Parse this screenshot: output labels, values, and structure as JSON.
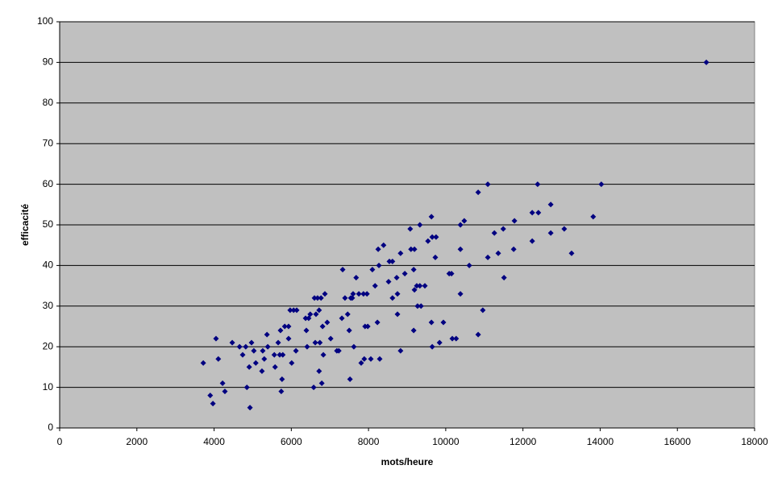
{
  "chart_data": {
    "type": "scatter",
    "x_label": "mots/heure",
    "y_label": "efficacité",
    "xlim": [
      0,
      18000
    ],
    "xticks": [
      0,
      2000,
      4000,
      6000,
      8000,
      10000,
      12000,
      14000,
      16000,
      18000
    ],
    "ylim": [
      0,
      100
    ],
    "yticks": [
      0,
      10,
      20,
      30,
      40,
      50,
      60,
      70,
      80,
      90,
      100
    ],
    "grid": true,
    "background": "#c0c0c0",
    "color": "#000080",
    "x": [
      3720,
      3900,
      3970,
      4050,
      4110,
      4220,
      4280,
      4470,
      4660,
      4740,
      4820,
      4850,
      4910,
      4930,
      4970,
      5030,
      5080,
      5240,
      5260,
      5300,
      5370,
      5390,
      5560,
      5580,
      5660,
      5700,
      5720,
      5740,
      5760,
      5780,
      5830,
      5930,
      5930,
      5970,
      6010,
      6060,
      6120,
      6140,
      6370,
      6390,
      6410,
      6450,
      6490,
      6580,
      6600,
      6620,
      6640,
      6680,
      6720,
      6720,
      6740,
      6770,
      6790,
      6810,
      6830,
      6870,
      6930,
      7020,
      7180,
      7230,
      7310,
      7330,
      7390,
      7460,
      7500,
      7520,
      7540,
      7580,
      7600,
      7620,
      7680,
      7750,
      7810,
      7870,
      7890,
      7910,
      7960,
      7980,
      8060,
      8100,
      8170,
      8230,
      8250,
      8270,
      8290,
      8390,
      8520,
      8540,
      8620,
      8620,
      8730,
      8750,
      8750,
      8830,
      8830,
      8940,
      9080,
      9100,
      9170,
      9170,
      9190,
      9190,
      9250,
      9270,
      9330,
      9330,
      9360,
      9460,
      9540,
      9630,
      9630,
      9650,
      9650,
      9730,
      9750,
      9840,
      9940,
      10090,
      10150,
      10170,
      10270,
      10380,
      10380,
      10380,
      10480,
      10610,
      10840,
      10840,
      10960,
      11090,
      11090,
      11260,
      11360,
      11490,
      11510,
      11760,
      11780,
      12240,
      12240,
      12380,
      12400,
      12720,
      12720,
      13070,
      13260,
      13820,
      14030,
      16750
    ],
    "y": [
      16,
      8,
      6,
      22,
      17,
      11,
      9,
      21,
      20,
      18,
      20,
      10,
      15,
      5,
      21,
      19,
      16,
      14,
      19,
      17,
      23,
      20,
      18,
      15,
      21,
      18,
      24,
      9,
      12,
      18,
      25,
      25,
      22,
      29,
      16,
      29,
      19,
      29,
      27,
      24,
      20,
      27,
      28,
      10,
      32,
      21,
      28,
      32,
      29,
      14,
      21,
      32,
      11,
      25,
      18,
      33,
      26,
      22,
      19,
      19,
      27,
      39,
      32,
      28,
      24,
      12,
      32,
      32,
      33,
      20,
      37,
      33,
      16,
      33,
      17,
      25,
      33,
      25,
      17,
      39,
      35,
      26,
      44,
      40,
      17,
      45,
      36,
      41,
      41,
      32,
      37,
      28,
      33,
      43,
      19,
      38,
      49,
      44,
      24,
      39,
      44,
      34,
      35,
      30,
      50,
      35,
      30,
      35,
      46,
      52,
      26,
      47,
      20,
      42,
      47,
      21,
      26,
      38,
      38,
      22,
      22,
      33,
      44,
      50,
      51,
      40,
      23,
      58,
      29,
      42,
      60,
      48,
      43,
      49,
      37,
      44,
      51,
      46,
      53,
      60,
      53,
      48,
      55,
      49,
      43,
      52,
      60,
      90
    ]
  }
}
